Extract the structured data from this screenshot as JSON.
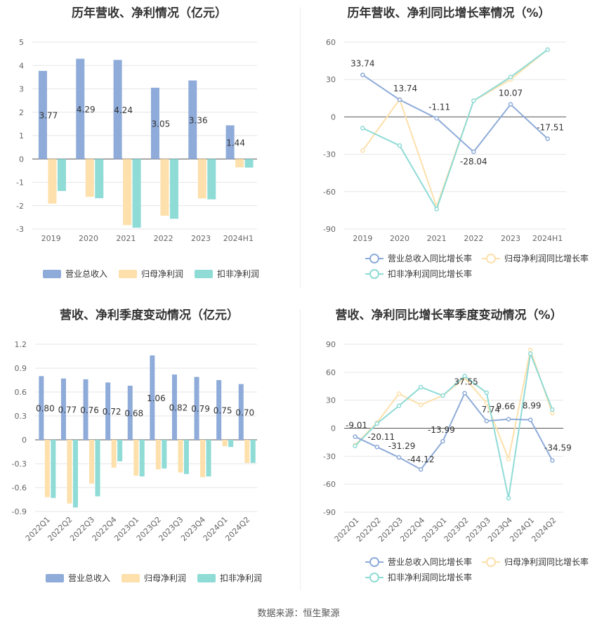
{
  "source": "数据来源：恒生聚源",
  "chart_data": [
    {
      "id": "annual_bar",
      "type": "bar",
      "title": "历年营收、净利情况（亿元）",
      "categories": [
        "2019",
        "2020",
        "2021",
        "2022",
        "2023",
        "2024H1"
      ],
      "series": [
        {
          "name": "营业总收入",
          "color": "#8eabd9",
          "values": [
            3.77,
            4.29,
            4.24,
            3.05,
            3.36,
            1.44
          ],
          "labels": [
            "3.77",
            "4.29",
            "4.24",
            "3.05",
            "3.36",
            "1.44"
          ]
        },
        {
          "name": "归母净利润",
          "color": "#fde0ab",
          "values": [
            -1.91,
            -1.62,
            -2.83,
            -2.43,
            -1.69,
            -0.36
          ]
        },
        {
          "name": "扣非净利润",
          "color": "#8fdbd6",
          "values": [
            -1.37,
            -1.68,
            -2.94,
            -2.56,
            -1.73,
            -0.37
          ]
        }
      ],
      "ylim": [
        -3,
        5
      ],
      "yticks": [
        "5",
        "4",
        "3",
        "2",
        "1",
        "0",
        "-1",
        "-2",
        "-3"
      ],
      "ytick_values": [
        5,
        4,
        3,
        2,
        1,
        0,
        -1,
        -2,
        -3
      ]
    },
    {
      "id": "annual_line",
      "type": "line",
      "title": "历年营收、净利同比增长率情况（%）",
      "categories": [
        "2019",
        "2020",
        "2021",
        "2022",
        "2023",
        "2024H1"
      ],
      "series": [
        {
          "name": "营业总收入同比增长率",
          "color": "#8eabd9",
          "values": [
            33.74,
            13.74,
            -1.11,
            -28.04,
            10.07,
            -17.51
          ],
          "labels": [
            "33.74",
            "13.74",
            "-1.11",
            "-28.04",
            "10.07",
            "-17.51"
          ]
        },
        {
          "name": "归母净利润同比增长率",
          "color": "#fde0ab",
          "values": [
            -27,
            14,
            -72,
            13,
            30,
            54
          ]
        },
        {
          "name": "扣非净利润同比增长率",
          "color": "#8fdbd6",
          "values": [
            -9,
            -23,
            -74,
            13,
            32,
            54
          ]
        }
      ],
      "ylim": [
        -90,
        60
      ],
      "yticks": [
        "60",
        "30",
        "0",
        "-30",
        "-60",
        "-90"
      ],
      "ytick_values": [
        60,
        30,
        0,
        -30,
        -60,
        -90
      ]
    },
    {
      "id": "quarter_bar",
      "type": "bar",
      "title": "营收、净利季度变动情况（亿元）",
      "categories": [
        "2022Q1",
        "2022Q2",
        "2022Q3",
        "2022Q4",
        "2023Q1",
        "2023Q2",
        "2023Q3",
        "2023Q4",
        "2024Q1",
        "2024Q2"
      ],
      "series": [
        {
          "name": "营业总收入",
          "color": "#8eabd9",
          "values": [
            0.8,
            0.77,
            0.76,
            0.72,
            0.68,
            1.06,
            0.82,
            0.79,
            0.75,
            0.7
          ],
          "labels": [
            "0.80",
            "0.77",
            "0.76",
            "0.72",
            "0.68",
            "1.06",
            "0.82",
            "0.79",
            "0.75",
            "0.70"
          ]
        },
        {
          "name": "归母净利润",
          "color": "#fde0ab",
          "values": [
            -0.72,
            -0.8,
            -0.55,
            -0.35,
            -0.45,
            -0.37,
            -0.41,
            -0.47,
            -0.08,
            -0.29
          ]
        },
        {
          "name": "扣非净利润",
          "color": "#8fdbd6",
          "values": [
            -0.73,
            -0.85,
            -0.71,
            -0.27,
            -0.46,
            -0.36,
            -0.43,
            -0.46,
            -0.09,
            -0.29
          ]
        }
      ],
      "ylim": [
        -0.9,
        1.2
      ],
      "yticks": [
        "1.2",
        "0.9",
        "0.6",
        "0.3",
        "0",
        "-0.3",
        "-0.6",
        "-0.9"
      ],
      "ytick_values": [
        1.2,
        0.9,
        0.6,
        0.3,
        0,
        -0.3,
        -0.6,
        -0.9
      ]
    },
    {
      "id": "quarter_line",
      "type": "line",
      "title": "营收、净利同比增长率季度变动情况（%）",
      "categories": [
        "2022Q1",
        "2022Q2",
        "2022Q3",
        "2022Q4",
        "2023Q1",
        "2023Q2",
        "2023Q3",
        "2023Q4",
        "2024Q1",
        "2024Q2"
      ],
      "series": [
        {
          "name": "营业总收入同比增长率",
          "color": "#8eabd9",
          "values": [
            -9.01,
            -20.11,
            -31.29,
            -44.12,
            -13.99,
            37.55,
            7.74,
            9.66,
            8.99,
            -34.59
          ],
          "labels": [
            "-9.01",
            "-20.11",
            "-31.29",
            "-44.12",
            "-13.99",
            "37.55",
            "7.74",
            "9.66",
            "8.99",
            "-34.59"
          ]
        },
        {
          "name": "归母净利润同比增长率",
          "color": "#fde0ab",
          "values": [
            -18,
            6,
            37,
            25,
            35,
            54,
            27,
            -33,
            84,
            16
          ]
        },
        {
          "name": "扣非净利润同比增长率",
          "color": "#8fdbd6",
          "values": [
            -19,
            5,
            24,
            44,
            35,
            56,
            38,
            -75,
            80,
            20
          ]
        }
      ],
      "ylim": [
        -90,
        90
      ],
      "yticks": [
        "90",
        "60",
        "30",
        "0",
        "-30",
        "-60",
        "-90"
      ],
      "ytick_values": [
        90,
        60,
        30,
        0,
        -30,
        -60,
        -90
      ]
    }
  ]
}
